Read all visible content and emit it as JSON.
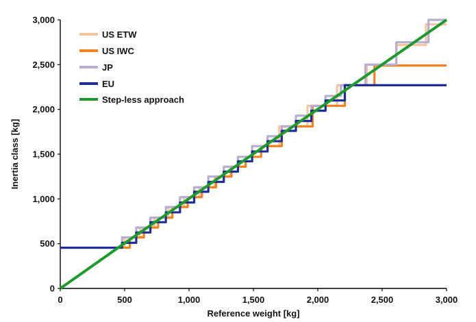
{
  "chart_data": {
    "type": "line",
    "title": "",
    "xlabel": "Reference weight [kg]",
    "ylabel": "Inertia class [kg]",
    "xlim": [
      0,
      3000
    ],
    "ylim": [
      0,
      3000
    ],
    "xticks": [
      0,
      500,
      1000,
      1500,
      2000,
      2500,
      3000
    ],
    "yticks": [
      0,
      500,
      1000,
      1500,
      2000,
      2500,
      3000
    ],
    "xtick_labels": [
      "0",
      "500",
      "1,000",
      "1,500",
      "2,000",
      "2,500",
      "3,000"
    ],
    "ytick_labels": [
      "0",
      "500",
      "1,000",
      "1,500",
      "2,000",
      "2,500",
      "3,000"
    ],
    "grid": false,
    "legend_position": "top-left",
    "series": [
      {
        "name": "US ETW",
        "color": "#f6c6a0",
        "x": [
          0,
          500,
          500,
          620,
          620,
          730,
          730,
          840,
          840,
          960,
          960,
          1080,
          1080,
          1200,
          1200,
          1320,
          1320,
          1440,
          1440,
          1560,
          1560,
          1700,
          1700,
          1920,
          1920,
          2150,
          2150,
          2380,
          2380,
          2610,
          2610,
          2840,
          2840,
          3000
        ],
        "y": [
          455,
          455,
          570,
          570,
          680,
          680,
          790,
          790,
          910,
          910,
          1020,
          1020,
          1130,
          1130,
          1250,
          1250,
          1360,
          1360,
          1470,
          1470,
          1590,
          1590,
          1810,
          1810,
          2040,
          2040,
          2270,
          2270,
          2500,
          2500,
          2720,
          2720,
          2950,
          2950
        ]
      },
      {
        "name": "US IWC",
        "color": "#f5821f",
        "x": [
          0,
          540,
          540,
          650,
          650,
          760,
          760,
          870,
          870,
          990,
          990,
          1100,
          1100,
          1210,
          1210,
          1330,
          1330,
          1440,
          1440,
          1560,
          1560,
          1720,
          1720,
          1960,
          1960,
          2210,
          2210,
          2440,
          2440,
          3000
        ],
        "y": [
          455,
          455,
          570,
          570,
          680,
          680,
          790,
          790,
          910,
          910,
          1020,
          1020,
          1130,
          1130,
          1250,
          1250,
          1360,
          1360,
          1470,
          1470,
          1590,
          1590,
          1810,
          1810,
          2040,
          2040,
          2270,
          2270,
          2490,
          2490
        ]
      },
      {
        "name": "JP",
        "color": "#b9aed2",
        "x": [
          0,
          480,
          480,
          590,
          590,
          700,
          700,
          820,
          820,
          930,
          930,
          1040,
          1040,
          1150,
          1150,
          1270,
          1270,
          1380,
          1380,
          1490,
          1490,
          1610,
          1610,
          1720,
          1720,
          1830,
          1830,
          1950,
          1950,
          2060,
          2060,
          2180,
          2180,
          2370,
          2370,
          2610,
          2610,
          2860,
          2860,
          3000
        ],
        "y": [
          455,
          455,
          570,
          570,
          680,
          680,
          790,
          790,
          910,
          910,
          1020,
          1020,
          1130,
          1130,
          1250,
          1250,
          1360,
          1360,
          1470,
          1470,
          1590,
          1590,
          1700,
          1700,
          1810,
          1810,
          1930,
          1930,
          2040,
          2040,
          2150,
          2150,
          2270,
          2270,
          2500,
          2500,
          2750,
          2750,
          3000,
          3000
        ]
      },
      {
        "name": "EU",
        "color": "#1f2f9a",
        "x": [
          0,
          480,
          480,
          590,
          590,
          700,
          700,
          820,
          820,
          930,
          930,
          1040,
          1040,
          1150,
          1150,
          1270,
          1270,
          1380,
          1380,
          1490,
          1490,
          1610,
          1610,
          1720,
          1720,
          1830,
          1830,
          1950,
          1950,
          2060,
          2060,
          2210,
          2210,
          3000
        ],
        "y": [
          455,
          455,
          510,
          510,
          625,
          625,
          740,
          740,
          850,
          850,
          960,
          960,
          1080,
          1080,
          1190,
          1190,
          1305,
          1305,
          1420,
          1420,
          1530,
          1530,
          1645,
          1645,
          1760,
          1760,
          1870,
          1870,
          1985,
          1985,
          2100,
          2100,
          2270,
          2270
        ]
      },
      {
        "name": "Step-less approach",
        "color": "#1e9a2c",
        "x": [
          0,
          450,
          450,
          3000
        ],
        "y": [
          0,
          455,
          455,
          3000
        ]
      }
    ]
  }
}
